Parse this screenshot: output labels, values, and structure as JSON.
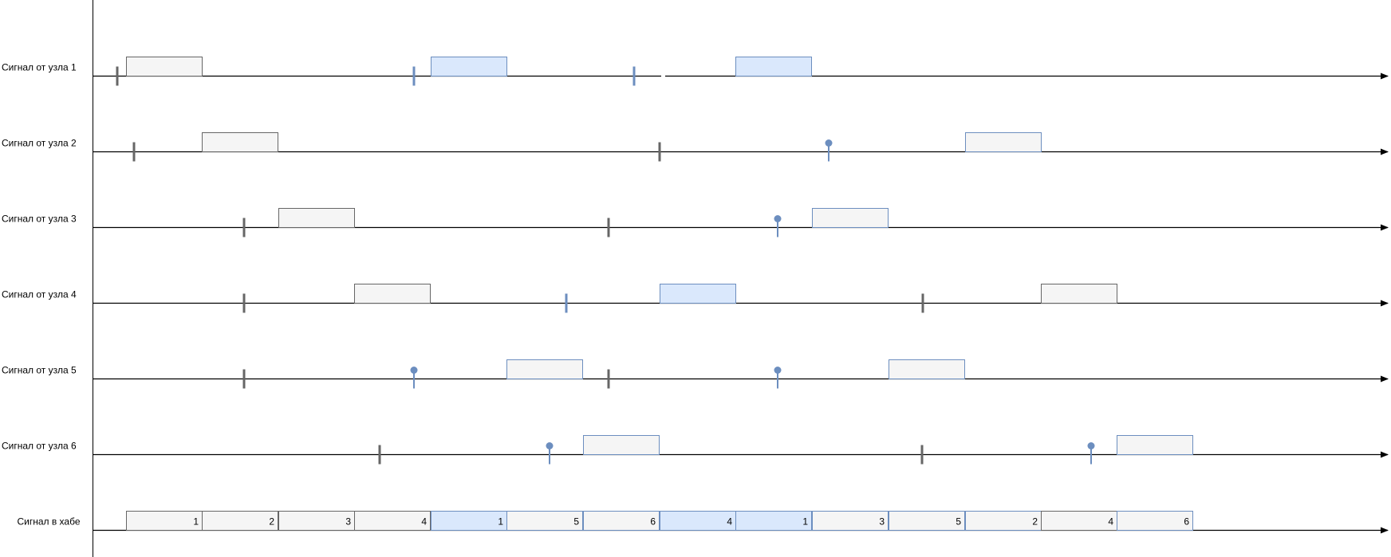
{
  "colors": {
    "axis": "#000000",
    "gray_fill": "#f5f5f5",
    "gray_stroke": "#666666",
    "blue_fill": "#dae8fc",
    "blue_stroke": "#6c8ebf",
    "gray_tick": "#666666",
    "blue_tick": "#6c8ebf",
    "pin": "#6c8ebf"
  },
  "rows": [
    {
      "label": "Сигнал от узла 1",
      "ticks": [
        {
          "at": 147,
          "style": "gray"
        },
        {
          "at": 519,
          "style": "blue"
        },
        {
          "at": 795,
          "style": "blue"
        }
      ],
      "pins": [],
      "packets": [
        {
          "start": 158,
          "style": "gray"
        },
        {
          "start": 540,
          "style": "blue"
        },
        {
          "start": 922,
          "style": "blue"
        }
      ],
      "gap": {
        "from": 829,
        "to": 834
      }
    },
    {
      "label": "Сигнал от узла 2",
      "ticks": [
        {
          "at": 168,
          "style": "gray"
        },
        {
          "at": 827,
          "style": "gray"
        }
      ],
      "pins": [
        1039
      ],
      "packets": [
        {
          "start": 253,
          "style": "gray"
        },
        {
          "start": 1210,
          "style": "grayblue"
        }
      ]
    },
    {
      "label": "Сигнал от узла 3",
      "ticks": [
        {
          "at": 306,
          "style": "gray"
        },
        {
          "at": 763,
          "style": "gray"
        }
      ],
      "pins": [
        975
      ],
      "packets": [
        {
          "start": 349,
          "style": "gray"
        },
        {
          "start": 1018,
          "style": "grayblue"
        }
      ]
    },
    {
      "label": "Сигнал от узла 4",
      "ticks": [
        {
          "at": 306,
          "style": "gray"
        },
        {
          "at": 710,
          "style": "blue"
        },
        {
          "at": 1157,
          "style": "gray"
        }
      ],
      "pins": [],
      "packets": [
        {
          "start": 444,
          "style": "gray"
        },
        {
          "start": 827,
          "style": "blue"
        },
        {
          "start": 1305,
          "style": "gray"
        }
      ]
    },
    {
      "label": "Сигнал от узла 5",
      "ticks": [
        {
          "at": 306,
          "style": "gray"
        },
        {
          "at": 763,
          "style": "gray"
        }
      ],
      "pins": [
        519,
        975
      ],
      "packets": [
        {
          "start": 635,
          "style": "grayblue"
        },
        {
          "start": 1114,
          "style": "grayblue"
        }
      ]
    },
    {
      "label": "Сигнал от узла 6",
      "ticks": [
        {
          "at": 476,
          "style": "gray"
        },
        {
          "at": 1156,
          "style": "gray"
        }
      ],
      "pins": [
        689,
        1368
      ],
      "packets": [
        {
          "start": 731,
          "style": "grayblue"
        },
        {
          "start": 1400,
          "style": "grayblue"
        }
      ]
    }
  ],
  "hub": {
    "label": "Сигнал в хабе",
    "slots": [
      {
        "start": 158,
        "num": "1",
        "style": "gray"
      },
      {
        "start": 253,
        "num": "2",
        "style": "gray"
      },
      {
        "start": 349,
        "num": "3",
        "style": "gray"
      },
      {
        "start": 444,
        "num": "4",
        "style": "gray"
      },
      {
        "start": 540,
        "num": "1",
        "style": "blue"
      },
      {
        "start": 635,
        "num": "5",
        "style": "grayblue"
      },
      {
        "start": 731,
        "num": "6",
        "style": "grayblue"
      },
      {
        "start": 827,
        "num": "4",
        "style": "blue"
      },
      {
        "start": 922,
        "num": "1",
        "style": "blue"
      },
      {
        "start": 1018,
        "num": "3",
        "style": "grayblue"
      },
      {
        "start": 1114,
        "num": "5",
        "style": "grayblue"
      },
      {
        "start": 1210,
        "num": "2",
        "style": "grayblue"
      },
      {
        "start": 1305,
        "num": "4",
        "style": "gray"
      },
      {
        "start": 1400,
        "num": "6",
        "style": "grayblue"
      }
    ]
  }
}
